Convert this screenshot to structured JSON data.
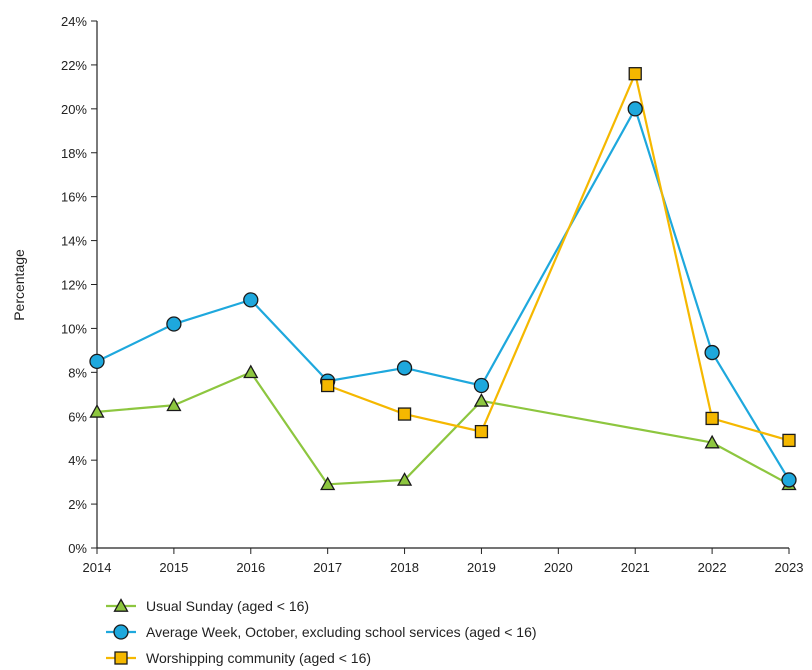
{
  "chart_data": {
    "type": "line",
    "title": "",
    "xlabel": "",
    "ylabel": "Percentage",
    "x": [
      "2014",
      "2015",
      "2016",
      "2017",
      "2018",
      "2019",
      "2020",
      "2021",
      "2022",
      "2023"
    ],
    "ylim": [
      0,
      24
    ],
    "yticks": [
      "0%",
      "2%",
      "4%",
      "6%",
      "8%",
      "10%",
      "12%",
      "14%",
      "16%",
      "18%",
      "20%",
      "22%",
      "24%"
    ],
    "grid": false,
    "legend_position": "bottom-left",
    "series": [
      {
        "name": "Usual Sunday (aged < 16)",
        "marker": "triangle",
        "color": "#8dc63f",
        "fill": "#8dc63f",
        "points": [
          {
            "x": "2014",
            "y": 6.2
          },
          {
            "x": "2015",
            "y": 6.5
          },
          {
            "x": "2016",
            "y": 8.0
          },
          {
            "x": "2017",
            "y": 2.9
          },
          {
            "x": "2018",
            "y": 3.1
          },
          {
            "x": "2019",
            "y": 6.7
          },
          {
            "x": "2022",
            "y": 4.8
          },
          {
            "x": "2023",
            "y": 2.9
          }
        ]
      },
      {
        "name": "Average Week, October, excluding school services (aged < 16)",
        "marker": "circle",
        "color": "#1ea8dd",
        "fill": "#1ea8dd",
        "points": [
          {
            "x": "2014",
            "y": 8.5
          },
          {
            "x": "2015",
            "y": 10.2
          },
          {
            "x": "2016",
            "y": 11.3
          },
          {
            "x": "2017",
            "y": 7.6
          },
          {
            "x": "2018",
            "y": 8.2
          },
          {
            "x": "2019",
            "y": 7.4
          },
          {
            "x": "2021",
            "y": 20.0
          },
          {
            "x": "2022",
            "y": 8.9
          },
          {
            "x": "2023",
            "y": 3.1
          }
        ]
      },
      {
        "name": "Worshipping community (aged < 16)",
        "marker": "square",
        "color": "#f5b800",
        "fill": "#f5b800",
        "points": [
          {
            "x": "2017",
            "y": 7.4
          },
          {
            "x": "2018",
            "y": 6.1
          },
          {
            "x": "2019",
            "y": 5.3
          },
          {
            "x": "2021",
            "y": 21.6
          },
          {
            "x": "2022",
            "y": 5.9
          },
          {
            "x": "2023",
            "y": 4.9
          }
        ]
      }
    ]
  }
}
